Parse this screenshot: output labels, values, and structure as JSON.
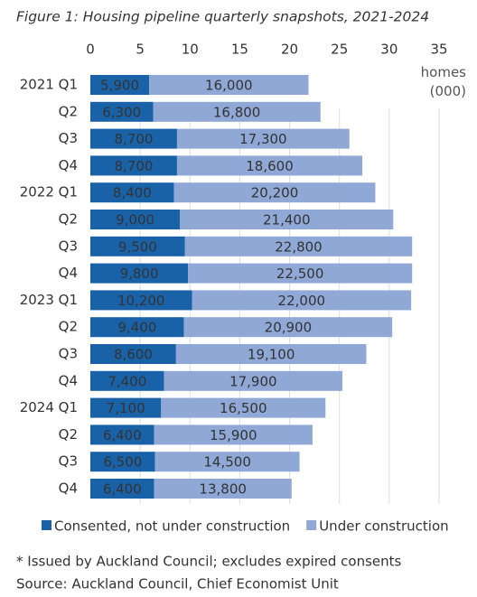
{
  "chart_data": {
    "type": "stacked-barh",
    "title": "Figure 1: Housing pipeline quarterly snapshots, 2021-2024",
    "x_label": "homes (000)",
    "categories": [
      "2021 Q1",
      "Q2",
      "Q3",
      "Q4",
      "2022 Q1",
      "Q2",
      "Q3",
      "Q4",
      "2023 Q1",
      "Q2",
      "Q3",
      "Q4",
      "2024 Q1",
      "Q2",
      "Q3",
      "Q4"
    ],
    "series": [
      {
        "name": "Consented, not under construction",
        "color": "#1a62a8",
        "values": [
          5.9,
          6.3,
          8.7,
          8.7,
          8.4,
          9.0,
          9.5,
          9.8,
          10.2,
          9.4,
          8.6,
          7.4,
          7.1,
          6.4,
          6.5,
          6.4
        ],
        "value_labels": [
          "5,900",
          "6,300",
          "8,700",
          "8,700",
          "8,400",
          "9,000",
          "9,500",
          "9,800",
          "10,200",
          "9,400",
          "8,600",
          "7,400",
          "7,100",
          "6,400",
          "6,500",
          "6,400"
        ]
      },
      {
        "name": "Under construction",
        "color": "#8fa8d6",
        "values": [
          16.0,
          16.8,
          17.3,
          18.6,
          20.2,
          21.4,
          22.8,
          22.5,
          22.0,
          20.9,
          19.1,
          17.9,
          16.5,
          15.9,
          14.5,
          13.8
        ],
        "value_labels": [
          "16,000",
          "16,800",
          "17,300",
          "18,600",
          "20,200",
          "21,400",
          "22,800",
          "22,500",
          "22,000",
          "20,900",
          "19,100",
          "17,900",
          "16,500",
          "15,900",
          "14,500",
          "13,800"
        ]
      }
    ],
    "xlim": [
      0,
      35
    ],
    "xticks": [
      0,
      5,
      10,
      15,
      20,
      25,
      30,
      35
    ],
    "grid": true,
    "legend": "bottom",
    "notes": [
      "* Issued by Auckland Council; excludes expired consents",
      "Source: Auckland Council, Chief Economist Unit"
    ]
  }
}
